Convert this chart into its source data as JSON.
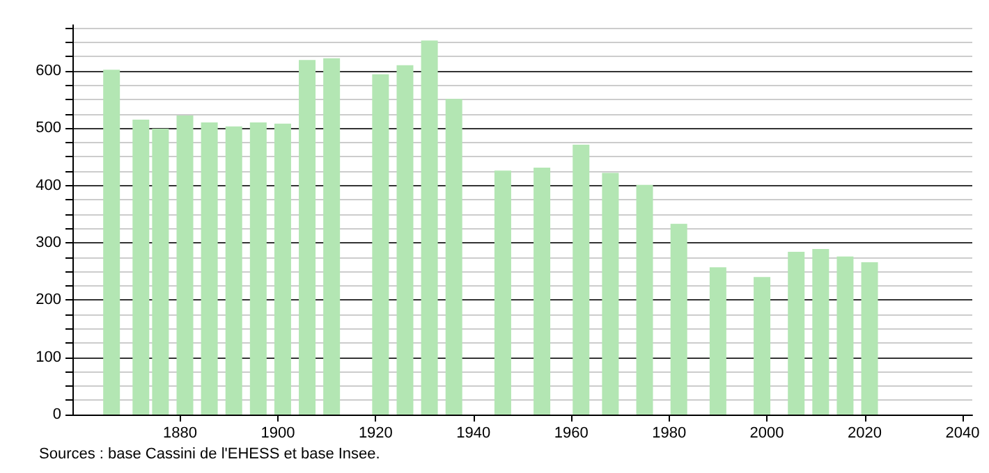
{
  "chart_data": {
    "type": "bar",
    "x": [
      1866,
      1872,
      1876,
      1881,
      1886,
      1891,
      1896,
      1901,
      1906,
      1911,
      1921,
      1926,
      1931,
      1936,
      1946,
      1954,
      1962,
      1968,
      1975,
      1982,
      1990,
      1999,
      2006,
      2011,
      2016,
      2021
    ],
    "values": [
      602,
      515,
      499,
      522,
      510,
      503,
      510,
      508,
      619,
      622,
      594,
      610,
      653,
      551,
      426,
      431,
      471,
      422,
      401,
      333,
      257,
      240,
      284,
      289,
      276,
      266
    ],
    "color": "#b3e6b3",
    "xlim": [
      1858,
      2042
    ],
    "xticks": [
      1880,
      1900,
      1920,
      1940,
      1960,
      1980,
      2000,
      2020,
      2040
    ],
    "ylim": [
      0,
      680
    ],
    "yticks": [
      0,
      {
        "value": 25,
        "label": null
      },
      {
        "value": 50,
        "label": null
      },
      {
        "value": 75,
        "label": null
      },
      100,
      {
        "value": 125,
        "label": null
      },
      {
        "value": 150,
        "label": null
      },
      {
        "value": 175,
        "label": null
      },
      200,
      {
        "value": 225,
        "label": null
      },
      {
        "value": 250,
        "label": null
      },
      {
        "value": 275,
        "label": null
      },
      300,
      {
        "value": 325,
        "label": null
      },
      {
        "value": 350,
        "label": null
      },
      {
        "value": 375,
        "label": null
      },
      400,
      {
        "value": 425,
        "label": null
      },
      {
        "value": 450,
        "label": null
      },
      {
        "value": 475,
        "label": null
      },
      500,
      {
        "value": 525,
        "label": null
      },
      {
        "value": 550,
        "label": null
      },
      {
        "value": 575,
        "label": null
      },
      600,
      {
        "value": 625,
        "label": null
      },
      {
        "value": 650,
        "label": null
      },
      {
        "value": 675,
        "label": null
      }
    ],
    "grid": "y",
    "annotations": [
      "Sources : base Cassini de l'EHESS et base Insee."
    ]
  }
}
